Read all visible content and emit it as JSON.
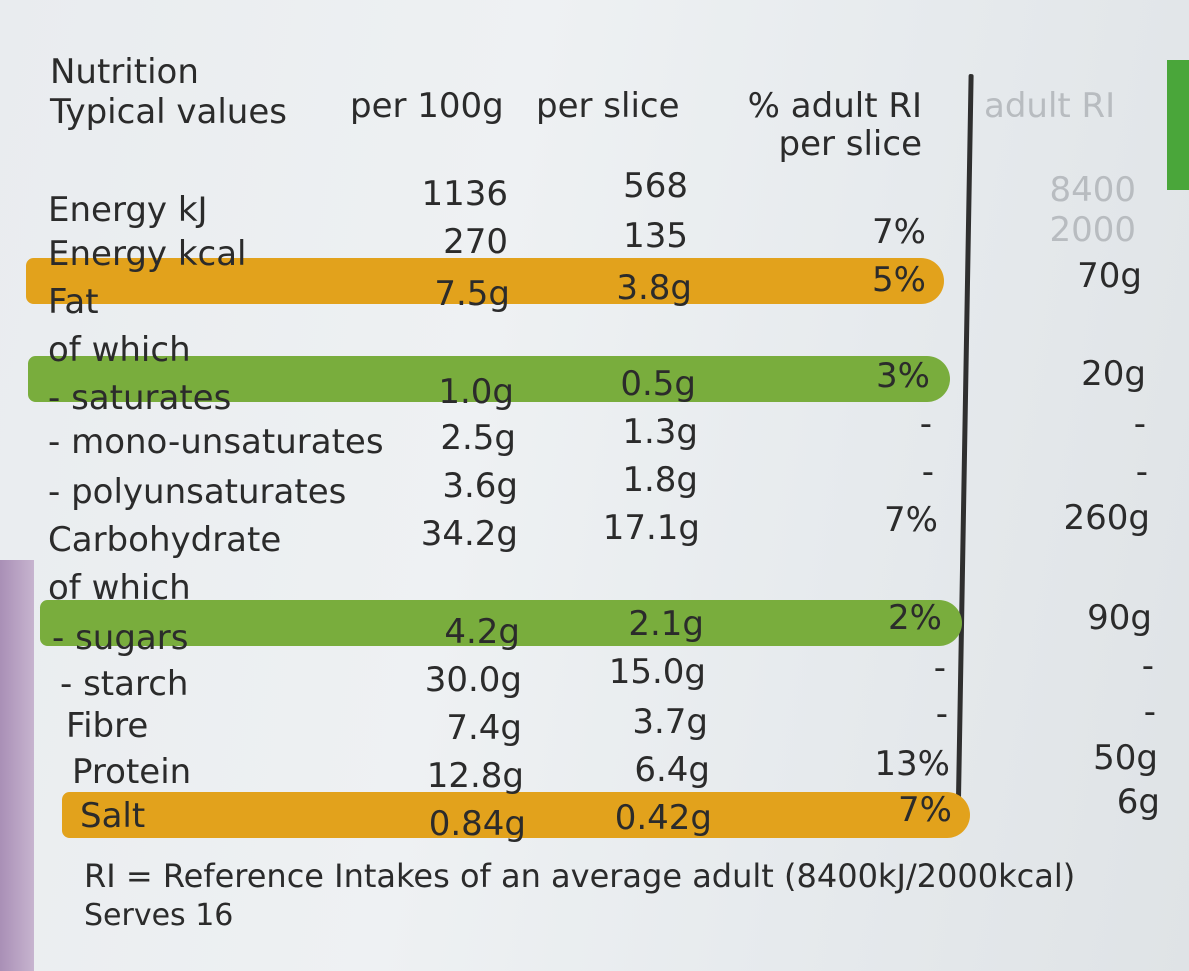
{
  "header": {
    "nutrition": "Nutrition",
    "typical_values": "Typical values",
    "per_100g": "per 100g",
    "per_slice": "per slice",
    "ri_line1": "% adult RI",
    "ri_line2": "per slice",
    "adult_ri": "adult RI"
  },
  "rows": [
    {
      "label": "Energy kJ",
      "per100": "1136",
      "slice": "568",
      "ri_pct": "",
      "adult_ri": "8400"
    },
    {
      "label": "Energy kcal",
      "per100": "270",
      "slice": "135",
      "ri_pct": "7%",
      "adult_ri": "2000"
    },
    {
      "label": "Fat",
      "per100": "7.5g",
      "slice": "3.8g",
      "ri_pct": "5%",
      "adult_ri": "70g"
    },
    {
      "label": "of which",
      "per100": "",
      "slice": "",
      "ri_pct": "",
      "adult_ri": ""
    },
    {
      "label": "- saturates",
      "per100": "1.0g",
      "slice": "0.5g",
      "ri_pct": "3%",
      "adult_ri": "20g"
    },
    {
      "label": "- mono-unsaturates",
      "per100": "2.5g",
      "slice": "1.3g",
      "ri_pct": "-",
      "adult_ri": "-"
    },
    {
      "label": "- polyunsaturates",
      "per100": "3.6g",
      "slice": "1.8g",
      "ri_pct": "-",
      "adult_ri": "-"
    },
    {
      "label": "Carbohydrate",
      "per100": "34.2g",
      "slice": "17.1g",
      "ri_pct": "7%",
      "adult_ri": "260g"
    },
    {
      "label": "of which",
      "per100": "",
      "slice": "",
      "ri_pct": "",
      "adult_ri": ""
    },
    {
      "label": "- sugars",
      "per100": "4.2g",
      "slice": "2.1g",
      "ri_pct": "2%",
      "adult_ri": "90g"
    },
    {
      "label": "- starch",
      "per100": "30.0g",
      "slice": "15.0g",
      "ri_pct": "-",
      "adult_ri": "-"
    },
    {
      "label": "Fibre",
      "per100": "7.4g",
      "slice": "3.7g",
      "ri_pct": "-",
      "adult_ri": "-"
    },
    {
      "label": "Protein",
      "per100": "12.8g",
      "slice": "6.4g",
      "ri_pct": "13%",
      "adult_ri": "50g"
    },
    {
      "label": "Salt",
      "per100": "0.84g",
      "slice": "0.42g",
      "ri_pct": "7%",
      "adult_ri": "6g"
    }
  ],
  "footer": {
    "ri_note": "RI = Reference Intakes of an average adult (8400kJ/2000kcal)",
    "serves": "Serves 16"
  },
  "colors": {
    "orange_band": "#e2a21c",
    "green_band": "#79ad3d"
  }
}
